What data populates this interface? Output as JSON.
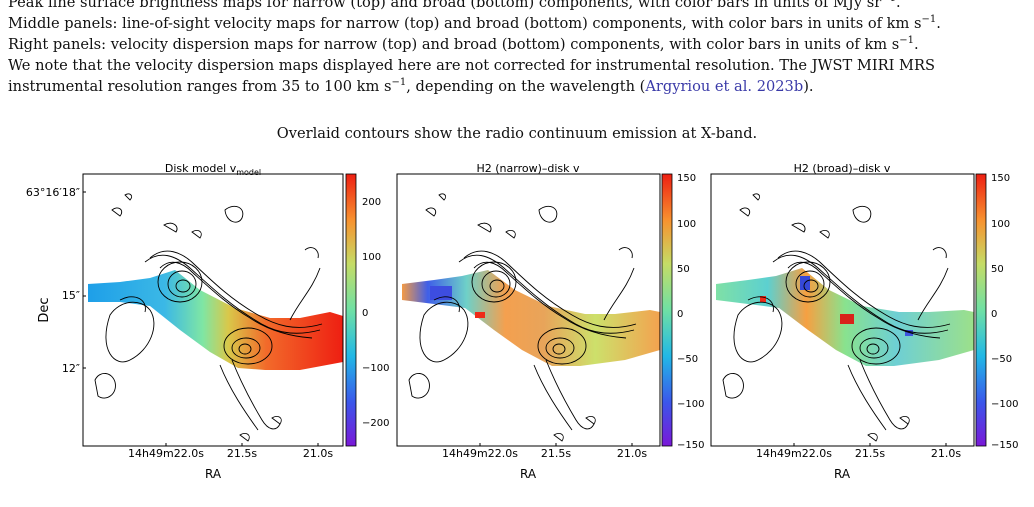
{
  "caption": {
    "line1": "Peak line surface brightness maps for narrow (top) and broad (bottom) components, with color bars in units of MJy sr",
    "line1_sup": "−1",
    "line2": "Middle panels: line-of-sight velocity maps for narrow (top) and broad (bottom) components, with color bars in units of km s",
    "line2_sup": "−1",
    "line3": "Right panels: velocity dispersion maps for narrow (top) and broad (bottom) components, with color bars in units of km s",
    "line3_sup": "−1",
    "line4": "We note that the velocity dispersion maps displayed here are not corrected for instrumental resolution. The JWST MIRI MRS",
    "line5_pre": "instrumental resolution ranges from 35 to 100 km s",
    "line5_sup": "−1",
    "line5_mid": ", depending on the wavelength (",
    "line5_link": "Argyriou et al. 2023b",
    "line5_post": ").",
    "subcaption": "Overlaid contours show the radio continuum emission at X-band."
  },
  "panels": [
    {
      "title": "Disk model v",
      "title_sub": "model",
      "ylabel": "Dec",
      "xlabel": "RA",
      "yticks": [
        "63°16′18″",
        "15″",
        "12″"
      ],
      "xticks": [
        "14h49m22.0s",
        "21.5s",
        "21.0s"
      ],
      "colorbar_ticks": [
        "200",
        "100",
        "0",
        "−100",
        "−200"
      ]
    },
    {
      "title": "H2 (narrow)–disk v",
      "xlabel": "RA",
      "xticks": [
        "14h49m22.0s",
        "21.5s",
        "21.0s"
      ],
      "colorbar_ticks": [
        "150",
        "100",
        "50",
        "0",
        "−50",
        "−100",
        "−150"
      ]
    },
    {
      "title": "H2 (broad)–disk v",
      "xlabel": "RA",
      "xticks": [
        "14h49m22.0s",
        "21.5s",
        "21.0s"
      ],
      "colorbar_ticks": [
        "150",
        "100",
        "50",
        "0",
        "−50",
        "−100",
        "−150"
      ]
    }
  ],
  "colors": {
    "axis": "#000000",
    "caption_link": "#3a3aa8"
  }
}
